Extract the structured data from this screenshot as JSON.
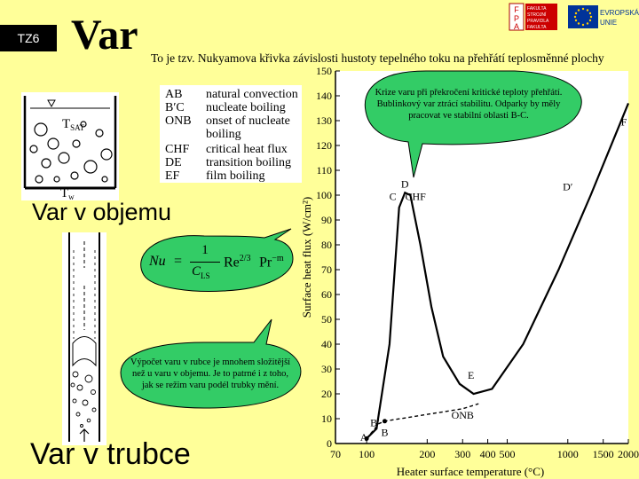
{
  "slide": {
    "badge": "TZ6",
    "title": "Var",
    "subtitle": "To je tzv. Nukyamova křivka závislosti hustoty tepelného toku na přehřátí teplosměnné plochy",
    "label_pool": "Var v objemu",
    "label_tube": "Var v trubce"
  },
  "logos": {
    "left_text": [
      "FAKULTA",
      "STROJNÍ",
      "PRAVIDLA",
      "FAKULTA"
    ],
    "left_letters": [
      "F",
      "P",
      "A"
    ],
    "right_text": [
      "EVROPSKÁ",
      "UNIE"
    ]
  },
  "legend": [
    {
      "abbr": "AB",
      "desc": "natural convection"
    },
    {
      "abbr": "B′C",
      "desc": "nucleate boiling"
    },
    {
      "abbr": "ONB",
      "desc": "onset of nucleate"
    },
    {
      "abbr": "",
      "desc": "boiling"
    },
    {
      "abbr": "CHF",
      "desc": "critical heat flux"
    },
    {
      "abbr": "DE",
      "desc": "transition boiling"
    },
    {
      "abbr": "EF",
      "desc": "film boiling"
    }
  ],
  "pool_labels": {
    "tsat": "T",
    "tsat_sub": "SAT",
    "tw": "T",
    "tw_sub": "w"
  },
  "callouts": {
    "chf": "Krize varu při překročení kritické teploty přehřátí. Bublinkový var ztrácí stabilitu. Odparky by měly pracovat ve stabilní oblasti B-C.",
    "tube": "Výpočet varu v rubce je mnohem složitější než u varu v objemu. Je to patrné i z toho, jak se režim varu podél trubky mění."
  },
  "formula": {
    "lhs": "Nu",
    "num": "1",
    "den": "C",
    "den_sub": "LS",
    "re": "Re",
    "re_exp": "2/3",
    "pr": "Pr",
    "pr_exp": "−m"
  },
  "chart_data": {
    "type": "line",
    "xlabel": "Heater surface temperature (°C)",
    "ylabel": "Surface heat flux (W/cm²)",
    "x_ticks": [
      70,
      100,
      200,
      300,
      400,
      500,
      1000,
      1500,
      2000
    ],
    "y_ticks": [
      0,
      10,
      20,
      30,
      40,
      50,
      60,
      70,
      80,
      90,
      100,
      110,
      120,
      130,
      140,
      150
    ],
    "xlim": [
      70,
      2000
    ],
    "ylim": [
      0,
      150
    ],
    "series": [
      {
        "points": [
          [
            100,
            2
          ],
          [
            112,
            6
          ],
          [
            130,
            40
          ],
          [
            145,
            95
          ],
          [
            155,
            101
          ],
          [
            165,
            100
          ],
          [
            185,
            80
          ],
          [
            210,
            55
          ],
          [
            240,
            35
          ],
          [
            290,
            24
          ],
          [
            340,
            20
          ],
          [
            420,
            22
          ],
          [
            600,
            40
          ],
          [
            900,
            70
          ],
          [
            1300,
            100
          ],
          [
            1700,
            123
          ],
          [
            2000,
            137
          ]
        ]
      },
      {
        "points": [
          [
            100,
            2
          ],
          [
            115,
            8
          ],
          [
            123,
            9
          ],
          [
            300,
            14
          ],
          [
            360,
            16
          ]
        ]
      }
    ],
    "point_labels": [
      {
        "label": "A",
        "x": 97,
        "y": 1
      },
      {
        "label": "B′",
        "x": 110,
        "y": 7
      },
      {
        "label": "B",
        "x": 123,
        "y": 3
      },
      {
        "label": "C",
        "x": 135,
        "y": 98
      },
      {
        "label": "D",
        "x": 155,
        "y": 103
      },
      {
        "label": "CHF",
        "x": 175,
        "y": 98
      },
      {
        "label": "E",
        "x": 330,
        "y": 26
      },
      {
        "label": "ONB",
        "x": 300,
        "y": 10
      },
      {
        "label": "D′",
        "x": 1000,
        "y": 102
      },
      {
        "label": "F",
        "x": 1900,
        "y": 128
      }
    ]
  }
}
